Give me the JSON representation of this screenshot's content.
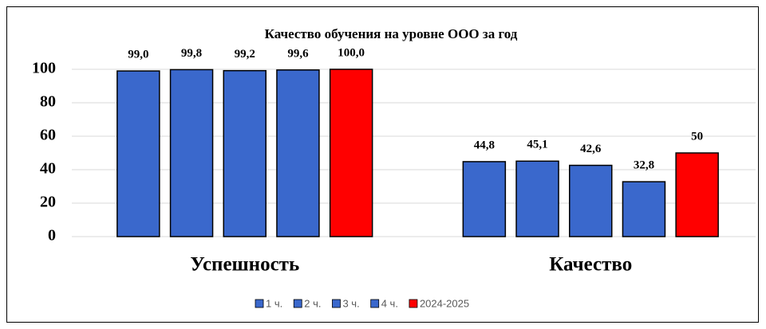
{
  "chart_data": {
    "type": "bar",
    "title": "Качество обучения на уровне ООО за год",
    "categories": [
      "Успешность",
      "Качество"
    ],
    "series": [
      {
        "name": "1 ч.",
        "color": "#3a68cc",
        "values": [
          99.0,
          44.8
        ],
        "value_labels": [
          "99,0",
          "44,8"
        ]
      },
      {
        "name": "2 ч.",
        "color": "#3a68cc",
        "values": [
          99.8,
          45.1
        ],
        "value_labels": [
          "99,8",
          "45,1"
        ]
      },
      {
        "name": "3 ч.",
        "color": "#3a68cc",
        "values": [
          99.2,
          42.6
        ],
        "value_labels": [
          "99,2",
          "42,6"
        ]
      },
      {
        "name": "4 ч.",
        "color": "#3a68cc",
        "values": [
          99.6,
          32.8
        ],
        "value_labels": [
          "99,6",
          "32,8"
        ]
      },
      {
        "name": "2024-2025",
        "color": "#ff0000",
        "values": [
          100.0,
          50
        ],
        "value_labels": [
          "100,0",
          "50"
        ]
      }
    ],
    "ylim": [
      0,
      100
    ],
    "yticks": [
      0,
      20,
      40,
      60,
      80,
      100
    ],
    "grid": true,
    "legend": "bottom"
  }
}
